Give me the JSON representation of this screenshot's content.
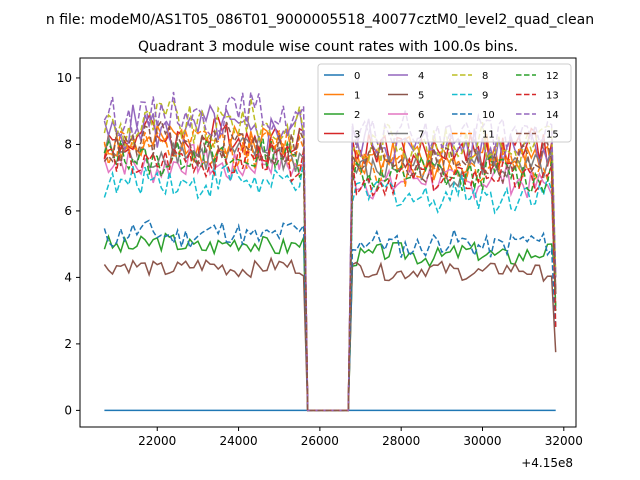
{
  "chart_data": {
    "type": "line",
    "suptitle": "n file: modeM0/AS1T05_086T01_9000005518_40077cztM0_level2_quad_clean",
    "title": "Quadrant 3 module wise count rates with 100.0s bins.",
    "xlabel": "",
    "ylabel": "",
    "x_offset_label": "+4.15e8",
    "xlim": [
      20100,
      32300
    ],
    "ylim": [
      -0.5,
      10.6
    ],
    "xticks": [
      22000,
      24000,
      26000,
      28000,
      30000,
      32000
    ],
    "xtick_labels": [
      "22000",
      "24000",
      "26000",
      "28000",
      "30000",
      "32000"
    ],
    "yticks": [
      0,
      2,
      4,
      6,
      8,
      10
    ],
    "ytick_labels": [
      "0",
      "2",
      "4",
      "6",
      "8",
      "10"
    ],
    "x_range": {
      "start": 20700,
      "step": 100,
      "count": 112
    },
    "gap": {
      "from": 25700,
      "to": 26700
    },
    "legend": {
      "position": "top-right",
      "columns": 4
    },
    "series": [
      {
        "name": "0",
        "color": "#1f77b4",
        "style": "solid",
        "level_a": 0.0,
        "level_b": 0.0,
        "noise": 0.0,
        "seed": 1,
        "end": 0.0
      },
      {
        "name": "1",
        "color": "#ff7f0e",
        "style": "solid",
        "level_a": 8.0,
        "level_b": 7.6,
        "noise": 0.35,
        "seed": 2,
        "end": 3.0
      },
      {
        "name": "2",
        "color": "#2ca02c",
        "style": "solid",
        "level_a": 5.0,
        "level_b": 4.7,
        "noise": 0.18,
        "seed": 3,
        "end": 4.0
      },
      {
        "name": "3",
        "color": "#d62728",
        "style": "solid",
        "level_a": 8.2,
        "level_b": 7.8,
        "noise": 0.35,
        "seed": 4,
        "end": 3.5
      },
      {
        "name": "4",
        "color": "#9467bd",
        "style": "solid",
        "level_a": 8.4,
        "level_b": 8.0,
        "noise": 0.4,
        "seed": 5,
        "end": 4.0
      },
      {
        "name": "5",
        "color": "#8c564b",
        "style": "solid",
        "level_a": 4.3,
        "level_b": 4.2,
        "noise": 0.15,
        "seed": 6,
        "end": 1.75
      },
      {
        "name": "6",
        "color": "#e377c2",
        "style": "solid",
        "level_a": 7.4,
        "level_b": 6.9,
        "noise": 0.3,
        "seed": 7,
        "end": 3.0
      },
      {
        "name": "7",
        "color": "#7f7f7f",
        "style": "solid",
        "level_a": 7.7,
        "level_b": 7.3,
        "noise": 0.3,
        "seed": 8,
        "end": 3.5
      },
      {
        "name": "8",
        "color": "#bcbd22",
        "style": "dashed",
        "level_a": 8.6,
        "level_b": 8.0,
        "noise": 0.4,
        "seed": 9,
        "end": 4.0
      },
      {
        "name": "9",
        "color": "#17becf",
        "style": "dashed",
        "level_a": 6.9,
        "level_b": 6.5,
        "noise": 0.3,
        "seed": 10,
        "end": 3.0
      },
      {
        "name": "10",
        "color": "#1f77b4",
        "style": "dashed",
        "level_a": 5.3,
        "level_b": 5.0,
        "noise": 0.22,
        "seed": 11,
        "end": 2.5
      },
      {
        "name": "11",
        "color": "#ff7f0e",
        "style": "dashed",
        "level_a": 7.9,
        "level_b": 7.4,
        "noise": 0.35,
        "seed": 12,
        "end": 3.0
      },
      {
        "name": "12",
        "color": "#2ca02c",
        "style": "dashed",
        "level_a": 7.6,
        "level_b": 7.1,
        "noise": 0.3,
        "seed": 13,
        "end": 3.0
      },
      {
        "name": "13",
        "color": "#d62728",
        "style": "dashed",
        "level_a": 7.5,
        "level_b": 7.0,
        "noise": 0.3,
        "seed": 14,
        "end": 2.5
      },
      {
        "name": "14",
        "color": "#9467bd",
        "style": "dashed",
        "level_a": 8.9,
        "level_b": 8.3,
        "noise": 0.35,
        "seed": 15,
        "end": 4.0
      },
      {
        "name": "15",
        "color": "#8c564b",
        "style": "dashed",
        "level_a": 8.0,
        "level_b": 7.5,
        "noise": 0.35,
        "seed": 16,
        "end": 3.5
      }
    ]
  }
}
